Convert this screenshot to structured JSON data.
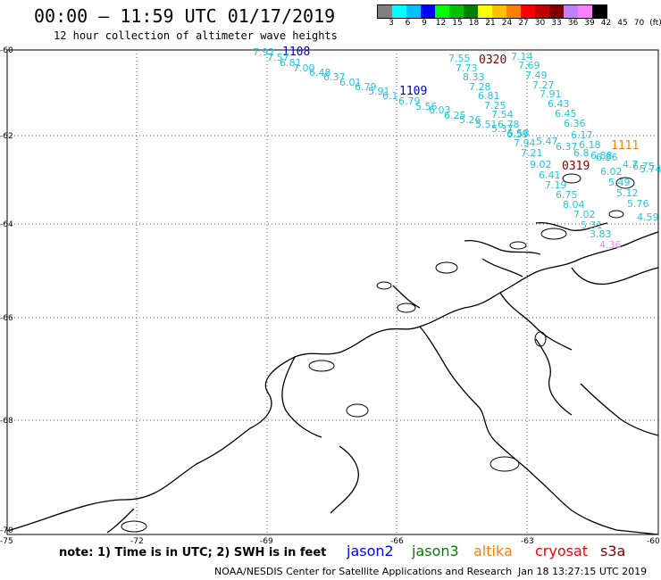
{
  "title": "00:00 – 11:59 UTC 01/17/2019",
  "subtitle": "12 hour collection of altimeter wave heights",
  "colorbar": {
    "colors": [
      "#808080",
      "#00ffff",
      "#00c0ff",
      "#0000ff",
      "#00ff00",
      "#00c000",
      "#008000",
      "#ffff00",
      "#ffc000",
      "#ff8000",
      "#ff0000",
      "#c00000",
      "#800000",
      "#c080ff",
      "#ff80ff",
      "#000000"
    ],
    "labels": [
      "3",
      "6",
      "9",
      "12",
      "15",
      "18",
      "21",
      "24",
      "27",
      "30",
      "33",
      "36",
      "39",
      "42",
      "45",
      "70",
      "(ft)"
    ]
  },
  "lat_labels": [
    "-60",
    "-62",
    "-64",
    "-66",
    "-68",
    "-70"
  ],
  "lon_labels": [
    "-75",
    "-72",
    "-69",
    "-66",
    "-63",
    "-60"
  ],
  "tracks": [
    {
      "label": "1108",
      "label_color": "#0000cc"
    },
    {
      "label": "1109",
      "label_color": "#0000cc"
    },
    {
      "label": "0320",
      "label_color": "#800000"
    },
    {
      "label": "0319",
      "label_color": "#800000"
    },
    {
      "label": "1111",
      "label_color": "#ff8000"
    }
  ],
  "swh_values": {
    "track_1108_1109": [
      "7.92",
      "7.57",
      "6.81",
      "7.00",
      "6.48",
      "6.37",
      "6.01",
      "6.79",
      "5.91",
      "6.1",
      "6.79",
      "5.56",
      "6.03",
      "6.25",
      "5.26",
      "5.51",
      "5.37",
      "5.58"
    ],
    "track_0320": [
      "7.55",
      "7.73",
      "8.33",
      "7.28",
      "6.81",
      "7.25",
      "7.54",
      "6.78",
      "6.59",
      "7.94",
      "7.21",
      "9.02",
      "6.41",
      "7.19",
      "6.75",
      "8.04",
      "7.02",
      "5.31",
      "3.83",
      "4.36"
    ],
    "track_0319": [
      "7.14",
      "7.69",
      "7.49",
      "7.27",
      "7.91",
      "6.43",
      "6.45",
      "6.36",
      "6.17",
      "6.18",
      "6.37",
      "5.47",
      "6.8",
      "6.88",
      "6.86",
      "6.02",
      "5.49",
      "5.12",
      "5.76",
      "4.59"
    ],
    "track_1111": [
      "4.7",
      "6.75",
      "5.74"
    ]
  },
  "legend": {
    "note": "note: 1) Time is in UTC; 2) SWH is in feet",
    "satellites": [
      {
        "name": "jason2",
        "color": "#0000ff"
      },
      {
        "name": "jason3",
        "color": "#008000"
      },
      {
        "name": "altika",
        "color": "#ff8000"
      },
      {
        "name": "cryosat",
        "color": "#ff0000"
      },
      {
        "name": "s3a",
        "color": "#800000"
      }
    ]
  },
  "footer": "NOAA/NESDIS Center for Satellite Applications and Research",
  "timestamp": "Jan 18 13:27:15 UTC 2019"
}
